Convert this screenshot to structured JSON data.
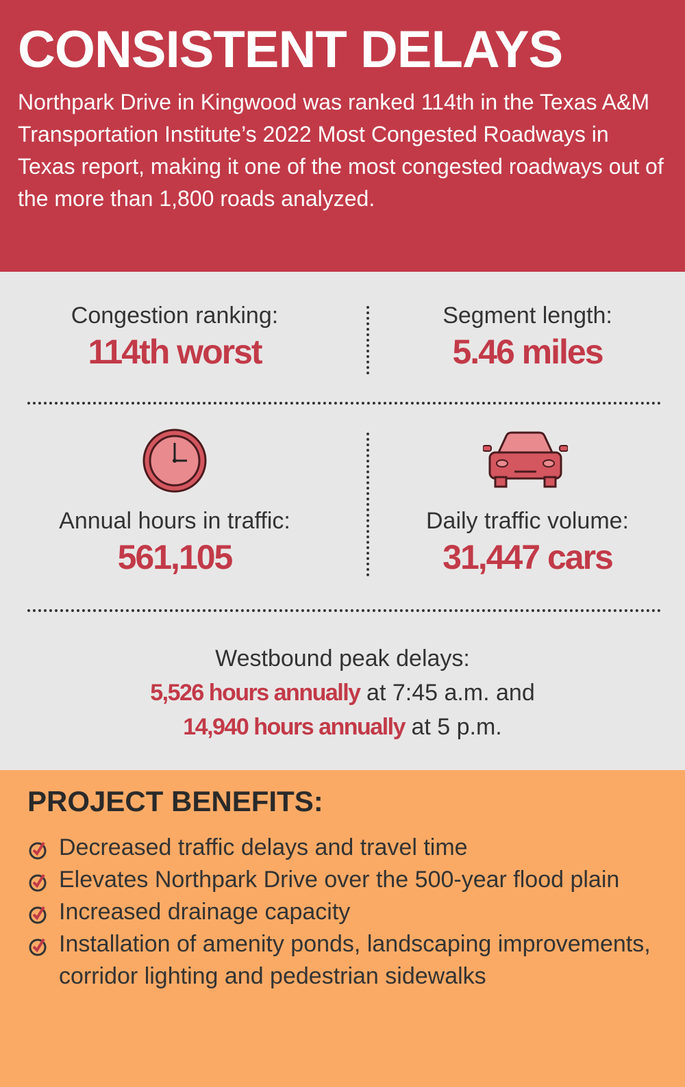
{
  "header": {
    "title": "CONSISTENT DELAYS",
    "intro": "Northpark Drive in Kingwood was ranked 114th in the Texas A&M Transportation Institute’s 2022 Most Congested Roadways in Texas report, making it one of the most congested roadways out of the more than 1,800 roads analyzed."
  },
  "stats": [
    {
      "label": "Congestion ranking:",
      "value": "114th worst"
    },
    {
      "label": "Segment length:",
      "value": "5.46 miles"
    },
    {
      "label": "Annual hours in traffic:",
      "value": "561,105"
    },
    {
      "label": "Daily traffic volume:",
      "value": "31,447 cars"
    }
  ],
  "peak": {
    "label": "Westbound peak delays:",
    "lines": [
      {
        "bold": "5,526 hours annually",
        "rest": "at 7:45 a.m. and"
      },
      {
        "bold": "14,940 hours annually",
        "rest": "at 5 p.m."
      }
    ]
  },
  "benefits": {
    "title": "PROJECT BENEFITS:",
    "items": [
      "Decreased traffic delays and travel time",
      "Elevates Northpark Drive over the 500-year flood plain",
      "Increased drainage capacity",
      "Installation of amenity ponds, landscaping improvements, corridor lighting and pedestrian sidewalks"
    ]
  }
}
